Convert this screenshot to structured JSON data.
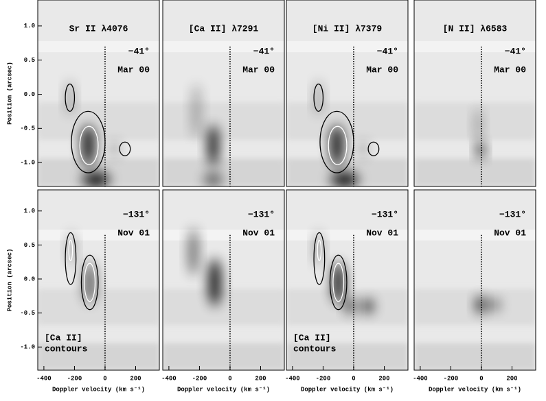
{
  "chart_data": [
    {
      "type": "image",
      "title": "Sr II λ4076",
      "annotations": [
        "−41°",
        "Mar 00"
      ],
      "xlim": [
        -440,
        355
      ],
      "ylim": [
        -1.35,
        1.38
      ],
      "ylabel": "Position (arcsec)",
      "yticks": [
        {
          "value": 1,
          "label": "1.0"
        },
        0.5,
        {
          "value": 0,
          "label": "0.0"
        },
        -0.5,
        {
          "value": -1,
          "label": "-1.0"
        }
      ],
      "contours": true
    },
    {
      "type": "image",
      "title": "[Ca II] λ7291",
      "annotations": [
        "−41°",
        "Mar 00"
      ],
      "xlim": [
        -440,
        355
      ],
      "ylim": [
        -1.35,
        1.38
      ],
      "contours": false
    },
    {
      "type": "image",
      "title": "[Ni II] λ7379",
      "annotations": [
        "−41°",
        "Mar 00"
      ],
      "xlim": [
        -440,
        355
      ],
      "ylim": [
        -1.35,
        1.38
      ],
      "contours": true
    },
    {
      "type": "image",
      "title": "[N II] λ6583",
      "annotations": [
        "−41°",
        "Mar 00"
      ],
      "xlim": [
        -440,
        355
      ],
      "ylim": [
        -1.35,
        1.38
      ],
      "contours": false
    },
    {
      "type": "image",
      "annotations": [
        "−131°",
        "Nov 01"
      ],
      "note": [
        "[Ca II]",
        "contours"
      ],
      "xlim": [
        -440,
        355
      ],
      "ylim": [
        -1.34,
        1.31
      ],
      "ylabel": "Position (arcsec)",
      "yticks": [
        {
          "value": 1,
          "label": "1.0"
        },
        0.5,
        {
          "value": 0,
          "label": "0.0"
        },
        -0.5,
        {
          "value": -1,
          "label": "-1.0"
        }
      ],
      "xlabel": "Doppler velocity (km s⁻¹)",
      "xticks": [
        -400,
        -200,
        0,
        200
      ],
      "contours": true
    },
    {
      "type": "image",
      "annotations": [
        "−131°",
        "Nov 01"
      ],
      "xlim": [
        -440,
        355
      ],
      "ylim": [
        -1.34,
        1.31
      ],
      "xlabel": "Doppler velocity (km s⁻¹)",
      "xticks": [
        -400,
        -200,
        0,
        200
      ],
      "contours": false
    },
    {
      "type": "image",
      "annotations": [
        "−131°",
        "Nov 01"
      ],
      "note": [
        "[Ca II]",
        "contours"
      ],
      "xlim": [
        -440,
        355
      ],
      "ylim": [
        -1.34,
        1.31
      ],
      "xlabel": "Doppler velocity (km s⁻¹)",
      "xticks": [
        -400,
        -200,
        0,
        200
      ],
      "contours": true
    },
    {
      "type": "image",
      "annotations": [
        "−131°",
        "Nov 01"
      ],
      "xlim": [
        -440,
        355
      ],
      "ylim": [
        -1.34,
        1.31
      ],
      "xlabel": "Doppler velocity (km s⁻¹)",
      "xticks": [
        -400,
        -200,
        0,
        200
      ],
      "contours": false
    }
  ]
}
